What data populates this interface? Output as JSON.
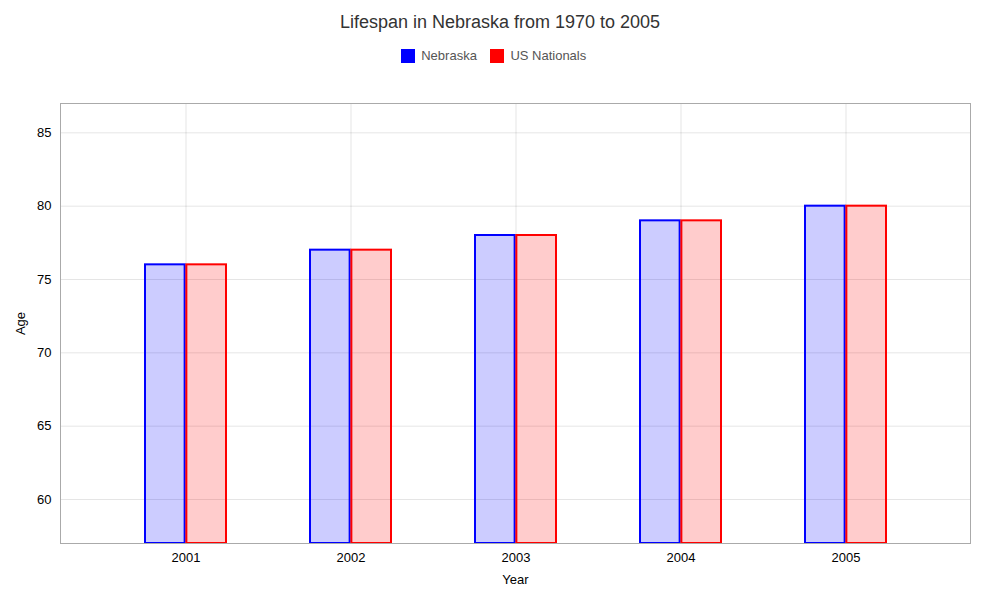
{
  "chart_data": {
    "type": "bar",
    "title": "Lifespan in Nebraska from 1970 to 2005",
    "x_label": "Year",
    "y_label": "Age",
    "categories": [
      "2001",
      "2002",
      "2003",
      "2004",
      "2005"
    ],
    "series": [
      {
        "name": "Nebraska",
        "color": "#0000ff",
        "values": [
          76,
          77,
          78,
          79,
          80
        ]
      },
      {
        "name": "US Nationals",
        "color": "#ff0000",
        "values": [
          76,
          77,
          78,
          79,
          80
        ]
      }
    ],
    "ylim": [
      57,
      87
    ],
    "yticks": [
      60,
      65,
      70,
      75,
      80,
      85
    ],
    "grid": true,
    "legend": "upper center"
  }
}
